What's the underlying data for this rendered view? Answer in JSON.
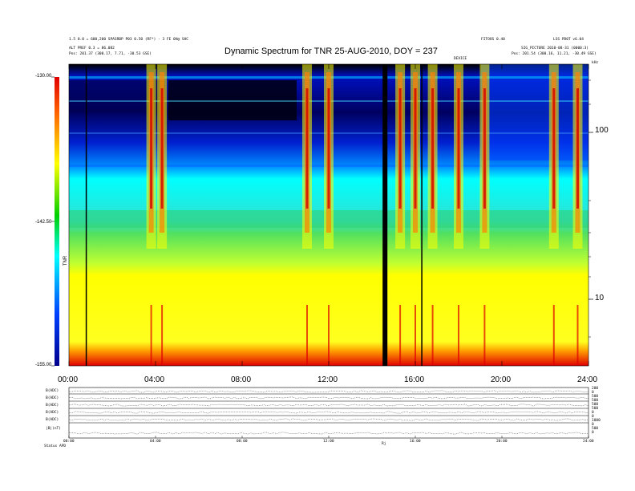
{
  "header": {
    "left_line1": "1.5 0.0 = 600,200 SPASRBP P03 0.50 (RF*) - 3 FE 0H@ SHC",
    "left_line2": "ALT PREF 0.3 = 86.082",
    "left_line3": "Pos: 201.37 (300.17, 7.71, -30.53 GSE)",
    "right_line1a": "FITOOS 0.40",
    "right_line1b": "LSS PD0T v6.04",
    "right_line2": "SIG_PICTURE 2010-08-31 (0000:3)",
    "right_line3": "Pos: 201.54 (300.16, 11.21, -30.49 GSE)",
    "marker_label": "DEVICE"
  },
  "chart_data": {
    "type": "heatmap",
    "title": "Dynamic Spectrum for TNR 25-AUG-2010, DOY = 237",
    "x_ticks": [
      "00:00",
      "04:00",
      "08:00",
      "12:00",
      "16:00",
      "20:00",
      "24:00"
    ],
    "x_range_hours": [
      0,
      24
    ],
    "y_scale": "log",
    "y_ticks": [
      "100",
      "10"
    ],
    "y_top_label": "kHz",
    "colorbar": {
      "ticks": [
        "-130.00",
        "-142.50",
        "-155.00"
      ],
      "range": [
        -155,
        -130
      ],
      "label": "TNR",
      "colors": [
        "#e00000",
        "#ff6000",
        "#ffff00",
        "#00c000",
        "#00ffff",
        "#0040ff",
        "#00008c"
      ]
    },
    "data_gaps_hours": [
      0.8,
      14.6,
      16.3
    ],
    "bursts_hours": [
      3.8,
      4.3,
      11.0,
      12.0,
      15.3,
      16.0,
      16.8,
      18.0,
      19.2,
      22.4,
      23.5
    ]
  },
  "panels": {
    "left_labels": [
      "B(ADC)",
      "B(ADC)",
      "B(ADC)",
      "B(ADC)",
      "B(ADC)",
      "|B|(nT)"
    ],
    "right_labels": [
      "200",
      "0",
      "500",
      "500",
      "500",
      "500",
      "0",
      "0",
      "1000",
      "0",
      "500",
      "0"
    ],
    "x_ticks": [
      "00:00",
      "04:00",
      "08:00",
      "12:00",
      "16:00",
      "20:00",
      "24:00"
    ],
    "bottom_left": "Status",
    "bottom_left2": "APD",
    "bottom_center": "Rj"
  }
}
